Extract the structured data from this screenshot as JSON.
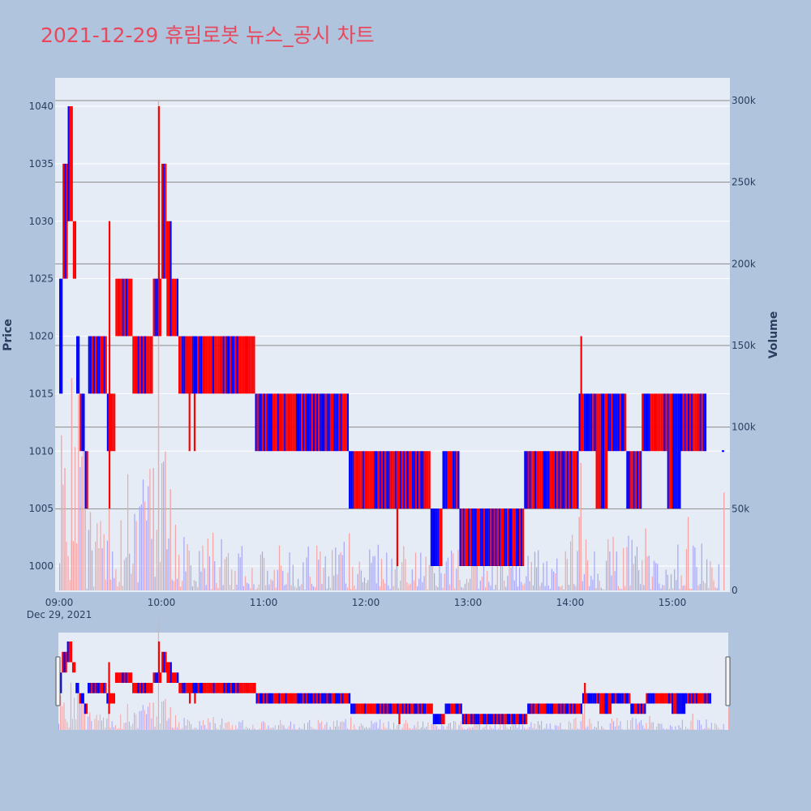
{
  "chart_data": {
    "type": "candlestick",
    "title": "2021-12-29 휴림로봇 뉴스_공시 차트",
    "ylabel": "Price",
    "y2label": "Volume",
    "ylim": [
      998,
      1042
    ],
    "y2lim": [
      0,
      300000
    ],
    "xlim": [
      "09:00",
      "15:30"
    ],
    "x_ticks": [
      "09:00",
      "10:00",
      "11:00",
      "12:00",
      "13:00",
      "14:00",
      "15:00"
    ],
    "x_date_label": "Dec 29, 2021",
    "y_ticks": [
      1000,
      1005,
      1010,
      1015,
      1020,
      1025,
      1030,
      1035,
      1040
    ],
    "y2_ticks": [
      "0",
      "50k",
      "100k",
      "150k",
      "200k",
      "250k",
      "300k"
    ],
    "y2_tick_values": [
      0,
      50000,
      100000,
      150000,
      200000,
      250000,
      300000
    ],
    "colors": {
      "up": "#ff0000",
      "down": "#0000ff",
      "up_volume": "#f4a6a6",
      "down_volume": "#a6a6f4",
      "plot_bg": "#e5ecf6",
      "page_bg": "#b0c4de",
      "title": "#e8485c"
    },
    "segments": [
      {
        "start": "09:00",
        "end": "09:02",
        "low": 1015,
        "high": 1025
      },
      {
        "start": "09:02",
        "end": "09:05",
        "low": 1025,
        "high": 1035
      },
      {
        "start": "09:05",
        "end": "09:08",
        "low": 1030,
        "high": 1040
      },
      {
        "start": "09:08",
        "end": "09:10",
        "low": 1025,
        "high": 1030
      },
      {
        "start": "09:10",
        "end": "09:12",
        "low": 1015,
        "high": 1020
      },
      {
        "start": "09:12",
        "end": "09:15",
        "low": 1010,
        "high": 1015
      },
      {
        "start": "09:15",
        "end": "09:17",
        "low": 1005,
        "high": 1010
      },
      {
        "start": "09:17",
        "end": "09:28",
        "low": 1015,
        "high": 1020
      },
      {
        "start": "09:28",
        "end": "09:33",
        "low": 1010,
        "high": 1015
      },
      {
        "start": "09:33",
        "end": "09:43",
        "low": 1020,
        "high": 1025
      },
      {
        "start": "09:43",
        "end": "09:55",
        "low": 1015,
        "high": 1020
      },
      {
        "start": "09:55",
        "end": "10:00",
        "low": 1020,
        "high": 1025
      },
      {
        "start": "10:00",
        "end": "10:03",
        "low": 1025,
        "high": 1035
      },
      {
        "start": "10:03",
        "end": "10:06",
        "low": 1020,
        "high": 1030
      },
      {
        "start": "10:06",
        "end": "10:10",
        "low": 1020,
        "high": 1025
      },
      {
        "start": "10:10",
        "end": "10:55",
        "low": 1015,
        "high": 1020
      },
      {
        "start": "10:55",
        "end": "11:50",
        "low": 1010,
        "high": 1015
      },
      {
        "start": "11:50",
        "end": "12:38",
        "low": 1005,
        "high": 1010
      },
      {
        "start": "12:38",
        "end": "12:45",
        "low": 1000,
        "high": 1005
      },
      {
        "start": "12:45",
        "end": "12:55",
        "low": 1005,
        "high": 1010
      },
      {
        "start": "12:55",
        "end": "13:33",
        "low": 1000,
        "high": 1005
      },
      {
        "start": "13:33",
        "end": "14:05",
        "low": 1005,
        "high": 1010
      },
      {
        "start": "14:05",
        "end": "14:15",
        "low": 1010,
        "high": 1015
      },
      {
        "start": "14:15",
        "end": "14:22",
        "low": 1005,
        "high": 1015
      },
      {
        "start": "14:22",
        "end": "14:33",
        "low": 1010,
        "high": 1015
      },
      {
        "start": "14:33",
        "end": "14:42",
        "low": 1005,
        "high": 1010
      },
      {
        "start": "14:42",
        "end": "14:57",
        "low": 1010,
        "high": 1015
      },
      {
        "start": "14:57",
        "end": "15:05",
        "low": 1005,
        "high": 1015
      },
      {
        "start": "15:05",
        "end": "15:20",
        "low": 1010,
        "high": 1015
      }
    ],
    "spikes": [
      {
        "time": "09:29",
        "low": 1005,
        "high": 1030
      },
      {
        "time": "09:58",
        "low": 1020,
        "high": 1040
      },
      {
        "time": "10:16",
        "low": 1010,
        "high": 1020
      },
      {
        "time": "10:19",
        "low": 1010,
        "high": 1015
      },
      {
        "time": "12:18",
        "low": 1000,
        "high": 1010
      },
      {
        "time": "14:06",
        "low": 1010,
        "high": 1020
      }
    ],
    "volume_profile": [
      {
        "start": "09:00",
        "end": "09:15",
        "max": 120000
      },
      {
        "start": "09:15",
        "end": "09:40",
        "max": 45000
      },
      {
        "start": "09:40",
        "end": "10:10",
        "max": 80000
      },
      {
        "start": "10:10",
        "end": "10:40",
        "max": 40000
      },
      {
        "start": "10:40",
        "end": "11:45",
        "max": 28000
      },
      {
        "start": "11:45",
        "end": "12:30",
        "max": 30000
      },
      {
        "start": "12:30",
        "end": "14:00",
        "max": 25000
      },
      {
        "start": "14:00",
        "end": "14:40",
        "max": 35000
      },
      {
        "start": "14:40",
        "end": "15:20",
        "max": 30000
      }
    ],
    "volume_peaks": [
      {
        "time": "09:01",
        "value": 95000
      },
      {
        "time": "09:03",
        "value": 75000
      },
      {
        "time": "09:07",
        "value": 130000
      },
      {
        "time": "09:13",
        "value": 82000
      },
      {
        "time": "09:15",
        "value": 70000
      },
      {
        "time": "09:18",
        "value": 48000
      },
      {
        "time": "09:29",
        "value": 50000
      },
      {
        "time": "09:55",
        "value": 75000
      },
      {
        "time": "09:58",
        "value": 300000
      },
      {
        "time": "10:02",
        "value": 85000
      },
      {
        "time": "10:05",
        "value": 62000
      },
      {
        "time": "11:50",
        "value": 35000
      },
      {
        "time": "14:06",
        "value": 78000
      },
      {
        "time": "14:05",
        "value": 45000
      },
      {
        "time": "14:44",
        "value": 38000
      },
      {
        "time": "15:09",
        "value": 45000
      },
      {
        "time": "15:30",
        "value": 60000
      }
    ],
    "volume_gridlines": [
      50000,
      100000,
      150000,
      200000,
      250000,
      300000
    ],
    "last_point": {
      "time": "15:30",
      "value": 1010
    }
  }
}
